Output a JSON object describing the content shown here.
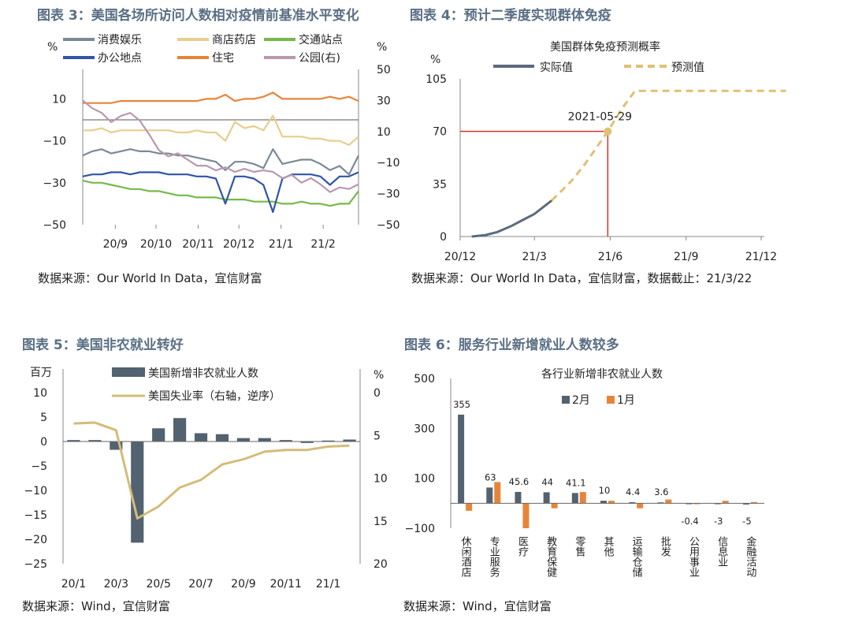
{
  "charts": [
    {
      "title": "图表 3：美国各场所访问人数相对疫情前基准水平变化",
      "source": "数据来源：Our World In Data，宜信财富",
      "left_unit": "%",
      "right_unit": "%",
      "left_ticks": [
        "10",
        "−10",
        "−30",
        "−50"
      ],
      "right_ticks": [
        "50",
        "30",
        "10",
        "−10",
        "−30",
        "−50"
      ],
      "x_ticks": [
        "20/9",
        "20/10",
        "20/11",
        "20/12",
        "21/1",
        "21/2"
      ],
      "legend": [
        "消费娱乐",
        "商店药店",
        "交通站点",
        "办公地点",
        "住宅",
        "公园(右)"
      ]
    },
    {
      "title": "图表 4：预计二季度实现群体免疫",
      "source": "数据来源：Our World In Data，宜信财富，数据截止：21/3/22",
      "subtitle": "美国群体免疫预测概率",
      "y_unit": "%",
      "y_ticks": [
        "105",
        "70",
        "35",
        "0"
      ],
      "x_ticks": [
        "20/12",
        "21/3",
        "21/6",
        "21/9",
        "21/12"
      ],
      "legend": [
        "实际值",
        "预测值"
      ],
      "annotation": "2021-05-29"
    },
    {
      "title": "图表 5：美国非农就业转好",
      "source": "数据来源：Wind，宜信财富",
      "left_unit": "百万",
      "right_unit": "%",
      "left_ticks": [
        "10",
        "5",
        "0",
        "−5",
        "−10",
        "−15",
        "−20",
        "−25"
      ],
      "right_ticks": [
        "0",
        "5",
        "10",
        "15",
        "20"
      ],
      "x_ticks": [
        "20/1",
        "20/3",
        "20/5",
        "20/7",
        "20/9",
        "20/11",
        "21/1"
      ],
      "legend": [
        "美国新增非农就业人数",
        "美国失业率（右轴，逆序）"
      ]
    },
    {
      "title": "图表 6：服务行业新增就业人数较多",
      "source": "数据来源：Wind，宜信财富",
      "subtitle": "各行业新增非农就业人数",
      "y_ticks": [
        "500",
        "300",
        "100",
        "−100"
      ],
      "legend": [
        "2月",
        "1月"
      ]
    }
  ],
  "chart_data": [
    {
      "type": "line",
      "x": [
        "2020-08-15",
        "2020-08-22",
        "2020-08-29",
        "2020-09-05",
        "2020-09-12",
        "2020-09-19",
        "2020-09-26",
        "2020-10-03",
        "2020-10-10",
        "2020-10-17",
        "2020-10-24",
        "2020-10-31",
        "2020-11-07",
        "2020-11-14",
        "2020-11-21",
        "2020-11-28",
        "2020-12-05",
        "2020-12-12",
        "2020-12-19",
        "2020-12-26",
        "2021-01-02",
        "2021-01-09",
        "2021-01-16",
        "2021-01-23",
        "2021-01-30",
        "2021-02-06",
        "2021-02-13",
        "2021-02-20",
        "2021-02-27",
        "2021-03-06"
      ],
      "series": [
        {
          "name": "消费娱乐",
          "axis": "left",
          "values": [
            -17,
            -15,
            -14,
            -16,
            -15,
            -14,
            -15,
            -15,
            -16,
            -16,
            -17,
            -17,
            -18,
            -19,
            -20,
            -24,
            -20,
            -20,
            -21,
            -23,
            -14,
            -21,
            -20,
            -19,
            -19,
            -21,
            -24,
            -22,
            -26,
            -17
          ]
        },
        {
          "name": "商店药店",
          "axis": "left",
          "values": [
            -5,
            -5,
            -4,
            -6,
            -5,
            -5,
            -5,
            -5,
            -5,
            -5,
            -6,
            -6,
            -5,
            -6,
            -6,
            -10,
            -1,
            -4,
            -3,
            -5,
            2,
            -8,
            -8,
            -8,
            -9,
            -9,
            -10,
            -10,
            -12,
            -8
          ]
        },
        {
          "name": "交通站点",
          "axis": "left",
          "values": [
            -29,
            -30,
            -30,
            -31,
            -32,
            -33,
            -33,
            -34,
            -34,
            -35,
            -36,
            -36,
            -37,
            -37,
            -37,
            -38,
            -38,
            -38,
            -39,
            -39,
            -39,
            -40,
            -40,
            -39,
            -40,
            -40,
            -41,
            -40,
            -40,
            -34
          ]
        },
        {
          "name": "办公地点",
          "axis": "left",
          "values": [
            -27,
            -26,
            -26,
            -25,
            -25,
            -26,
            -25,
            -25,
            -25,
            -26,
            -26,
            -26,
            -27,
            -27,
            -28,
            -40,
            -27,
            -27,
            -28,
            -31,
            -44,
            -28,
            -26,
            -26,
            -26,
            -27,
            -31,
            -27,
            -27,
            -25
          ]
        },
        {
          "name": "住宅",
          "axis": "left",
          "values": [
            8,
            8,
            8,
            8,
            9,
            9,
            9,
            9,
            9,
            9,
            9,
            9,
            9,
            10,
            10,
            12,
            9,
            10,
            10,
            11,
            13,
            10,
            10,
            10,
            10,
            10,
            11,
            10,
            11,
            9
          ]
        },
        {
          "name": "公园(右)",
          "axis": "right",
          "values": [
            30,
            25,
            22,
            16,
            20,
            22,
            17,
            8,
            -2,
            -6,
            -4,
            -8,
            -12,
            -12,
            -15,
            -13,
            -16,
            -14,
            -16,
            -15,
            -16,
            -20,
            -18,
            -23,
            -20,
            -24,
            -29,
            -26,
            -27,
            -24
          ]
        }
      ],
      "ylim": [
        -50,
        20
      ],
      "y2lim": [
        -50,
        50
      ]
    },
    {
      "type": "line",
      "x_range": [
        "2020-12",
        "2021-12"
      ],
      "series": [
        {
          "name": "实际值",
          "x": [
            "2020-12-15",
            "2021-01-01",
            "2021-01-15",
            "2021-02-01",
            "2021-02-15",
            "2021-03-01",
            "2021-03-22"
          ],
          "values": [
            0,
            1,
            3,
            7,
            11,
            15,
            24
          ]
        },
        {
          "name": "预测值",
          "x": [
            "2021-03-22",
            "2021-04-15",
            "2021-05-01",
            "2021-05-29",
            "2021-06-15",
            "2021-07-01",
            "2021-08-01",
            "2021-12-31"
          ],
          "values": [
            24,
            37,
            48,
            70,
            85,
            97,
            97,
            97
          ]
        }
      ],
      "annotation": {
        "x": "2021-05-29",
        "y": 70,
        "label": "2021-05-29"
      },
      "ylim": [
        0,
        105
      ]
    },
    {
      "type": "bar",
      "categories": [
        "20/1",
        "20/2",
        "20/3",
        "20/4",
        "20/5",
        "20/6",
        "20/7",
        "20/8",
        "20/9",
        "20/10",
        "20/11",
        "20/12",
        "21/1",
        "21/2"
      ],
      "series": [
        {
          "name": "美国新增非农就业人数",
          "axis": "left",
          "type": "bar",
          "values": [
            0.3,
            0.3,
            -1.7,
            -20.7,
            2.7,
            4.8,
            1.7,
            1.5,
            0.7,
            0.7,
            0.3,
            -0.3,
            0.2,
            0.4
          ]
        },
        {
          "name": "美国失业率（右轴，逆序）",
          "axis": "right",
          "type": "line",
          "values": [
            3.6,
            3.5,
            4.4,
            14.7,
            13.3,
            11.1,
            10.2,
            8.4,
            7.8,
            6.9,
            6.7,
            6.7,
            6.3,
            6.2
          ]
        }
      ],
      "ylim": [
        -25,
        10
      ],
      "y2lim": [
        0,
        20
      ],
      "y2_inverted": true
    },
    {
      "type": "bar",
      "categories": [
        "休闲酒店",
        "专业服务",
        "医疗",
        "教育保健",
        "零售",
        "其他",
        "运输仓储",
        "批发",
        "公用事业",
        "信息业",
        "金融活动"
      ],
      "series": [
        {
          "name": "2月",
          "values": [
            355,
            63,
            45.6,
            44,
            41.1,
            10,
            4.4,
            3.6,
            -0.4,
            -3,
            -5
          ]
        },
        {
          "name": "1月",
          "values": [
            -30,
            85,
            -100,
            -20,
            45,
            10,
            -20,
            15,
            0,
            10,
            5
          ]
        }
      ],
      "data_labels": [
        "355",
        "63",
        "45.6",
        "44",
        "41.1",
        "10",
        "4.4",
        "3.6",
        "-0.4",
        "-3",
        "-5"
      ],
      "ylim": [
        -100,
        500
      ]
    }
  ],
  "colors": {
    "title": "#5a6f84",
    "consume": "#7a8a96",
    "store": "#e8cd8c",
    "transit": "#76b94a",
    "office": "#2f55a8",
    "home": "#e8843a",
    "park": "#b998b0",
    "actual": "#5b6b7c",
    "forecast": "#dfc173",
    "redline": "#d9302a",
    "bar_dark": "#536270",
    "line_gold": "#d4bc78",
    "orange": "#e8843a"
  }
}
